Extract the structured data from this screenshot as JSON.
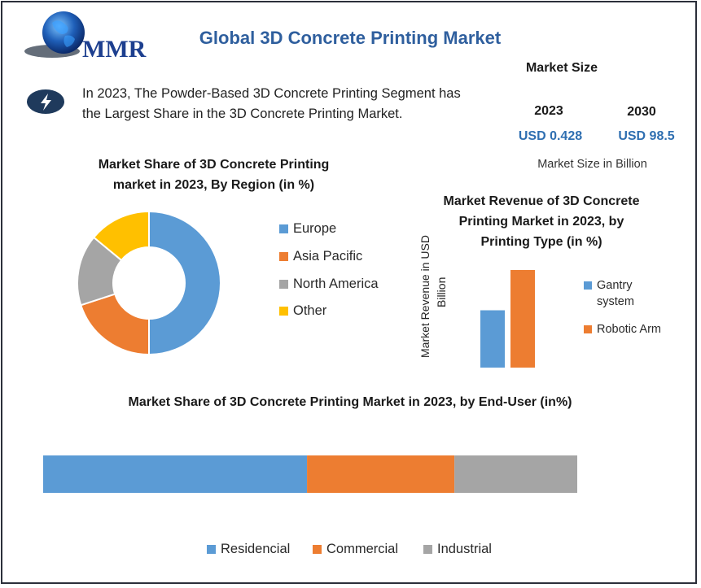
{
  "header": {
    "logo_text": "MMR",
    "title": "Global 3D Concrete Printing Market"
  },
  "highlight": {
    "icon": "lightning-bolt-icon",
    "text": "In 2023, The Powder-Based 3D Concrete Printing Segment has the Largest Share in the 3D Concrete Printing Market."
  },
  "market_size": {
    "title": "Market Size",
    "year_a": "2023",
    "value_a": "USD 0.428",
    "year_b": "2030",
    "value_b": "USD 98.5",
    "note": "Market Size in Billion"
  },
  "colors": {
    "blue": "#5b9bd5",
    "orange": "#ed7d31",
    "gray": "#a5a5a5",
    "yellow": "#ffc000",
    "title_blue": "#2f5f9e"
  },
  "chart_data": [
    {
      "type": "pie",
      "title_line1": "Market Share of 3D Concrete Printing",
      "title_line2": "market in 2023, By Region (in %)",
      "categories": [
        "Europe",
        "Asia Pacific",
        "North America",
        "Other"
      ],
      "values": [
        50,
        20,
        16,
        14
      ],
      "donut": true,
      "legend": "right"
    },
    {
      "type": "bar",
      "title_line1": "Market Revenue of 3D Concrete",
      "title_line2": "Printing Market in 2023, by",
      "title_line3": "Printing Type (in %)",
      "ylabel_line1": "Market Revenue in USD",
      "ylabel_line2": "Billion",
      "categories": [
        "Gantry system",
        "Robotic Arm"
      ],
      "legend_gantry_line1": "Gantry",
      "legend_gantry_line2": "system",
      "values": [
        37,
        63
      ],
      "ylim": [
        0,
        63
      ],
      "legend": "right"
    },
    {
      "type": "bar",
      "orientation": "horizontal-stacked",
      "title": "Market Share of 3D Concrete Printing Market in 2023, by End-User (in%)",
      "categories": [
        "Residencial",
        "Commercial",
        "Industrial"
      ],
      "values": [
        49.4,
        27.6,
        23
      ],
      "legend": "bottom"
    }
  ]
}
